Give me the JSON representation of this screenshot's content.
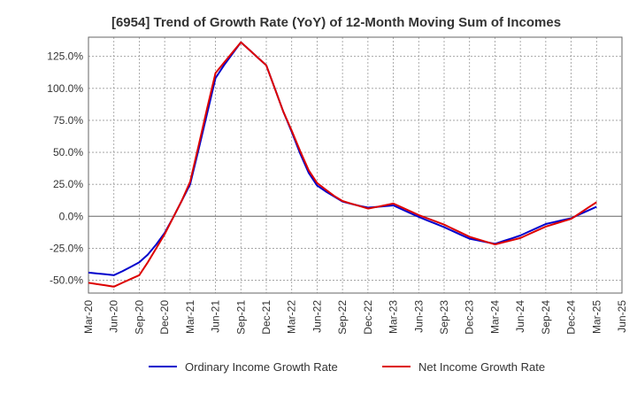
{
  "chart_data": {
    "type": "line",
    "title": "[6954]  Trend of Growth Rate (YoY) of 12-Month Moving Sum of Incomes",
    "xlabel": "",
    "ylabel": "",
    "x_ticks": [
      "Mar-20",
      "Jun-20",
      "Sep-20",
      "Dec-20",
      "Mar-21",
      "Jun-21",
      "Sep-21",
      "Dec-21",
      "Mar-22",
      "Jun-22",
      "Sep-22",
      "Dec-22",
      "Mar-23",
      "Jun-23",
      "Sep-23",
      "Dec-23",
      "Mar-24",
      "Jun-24",
      "Sep-24",
      "Dec-24",
      "Mar-25",
      "Jun-25"
    ],
    "y_ticks": [
      -50,
      -25,
      0,
      25,
      50,
      75,
      100,
      125
    ],
    "y_tick_labels": [
      "-50.0%",
      "-25.0%",
      "0.0%",
      "25.0%",
      "50.0%",
      "75.0%",
      "100.0%",
      "125.0%"
    ],
    "ylim": [
      -60,
      140
    ],
    "grid": true,
    "legend_position": "bottom",
    "colors": {
      "ordinary": "#0000cc",
      "net": "#dd0000",
      "grid": "#999999",
      "zero_line": "#666666"
    },
    "series": [
      {
        "name": "Ordinary Income Growth Rate",
        "color": "#0000cc",
        "x": [
          "Mar-20",
          "Apr-20",
          "May-20",
          "Jun-20",
          "Jul-20",
          "Aug-20",
          "Sep-20",
          "Oct-20",
          "Nov-20",
          "Dec-20",
          "Jan-21",
          "Feb-21",
          "Mar-21",
          "Apr-21",
          "May-21",
          "Jun-21",
          "Jul-21",
          "Aug-21",
          "Sep-21",
          "Oct-21",
          "Nov-21",
          "Dec-21",
          "Jan-22",
          "Feb-22",
          "Mar-22",
          "Apr-22",
          "May-22",
          "Jun-22",
          "Jul-22",
          "Aug-22",
          "Sep-22",
          "Oct-22",
          "Nov-22",
          "Dec-22",
          "Jan-23",
          "Feb-23",
          "Mar-23",
          "Apr-23",
          "May-23",
          "Jun-23",
          "Jul-23",
          "Aug-23",
          "Sep-23",
          "Oct-23",
          "Nov-23",
          "Dec-23",
          "Jan-24",
          "Feb-24",
          "Mar-24",
          "Apr-24",
          "May-24",
          "Jun-24",
          "Jul-24",
          "Aug-24",
          "Sep-24",
          "Oct-24",
          "Nov-24",
          "Dec-24",
          "Jan-25",
          "Feb-25",
          "Mar-25"
        ],
        "values": [
          -44,
          -44.7,
          -45.3,
          -46,
          -43,
          -39.5,
          -36,
          -30,
          -22,
          -13,
          -1,
          12,
          25,
          52,
          80,
          108,
          118,
          127,
          136,
          130,
          124,
          118,
          100,
          82,
          66,
          49,
          34,
          24,
          19.5,
          15.5,
          11.5,
          9.8,
          8.2,
          6.8,
          7.3,
          7.9,
          8.5,
          5.5,
          2.5,
          -0.5,
          -3.2,
          -5.8,
          -8.5,
          -11.5,
          -14.5,
          -17.5,
          -18.8,
          -20.2,
          -21.5,
          -19.3,
          -17.2,
          -15,
          -12,
          -9,
          -6,
          -4.5,
          -3,
          -1.5,
          1.5,
          4.5,
          7.5
        ]
      },
      {
        "name": "Net Income Growth Rate",
        "color": "#dd0000",
        "x": [
          "Mar-20",
          "Apr-20",
          "May-20",
          "Jun-20",
          "Jul-20",
          "Aug-20",
          "Sep-20",
          "Oct-20",
          "Nov-20",
          "Dec-20",
          "Jan-21",
          "Feb-21",
          "Mar-21",
          "Apr-21",
          "May-21",
          "Jun-21",
          "Jul-21",
          "Aug-21",
          "Sep-21",
          "Oct-21",
          "Nov-21",
          "Dec-21",
          "Jan-22",
          "Feb-22",
          "Mar-22",
          "Apr-22",
          "May-22",
          "Jun-22",
          "Jul-22",
          "Aug-22",
          "Sep-22",
          "Oct-22",
          "Nov-22",
          "Dec-22",
          "Jan-23",
          "Feb-23",
          "Mar-23",
          "Apr-23",
          "May-23",
          "Jun-23",
          "Jul-23",
          "Aug-23",
          "Sep-23",
          "Oct-23",
          "Nov-23",
          "Dec-23",
          "Jan-24",
          "Feb-24",
          "Mar-24",
          "Apr-24",
          "May-24",
          "Jun-24",
          "Jul-24",
          "Aug-24",
          "Sep-24",
          "Oct-24",
          "Nov-24",
          "Dec-24",
          "Jan-25",
          "Feb-25",
          "Mar-25"
        ],
        "values": [
          -52,
          -53,
          -54,
          -55,
          -52,
          -49,
          -46,
          -36,
          -25,
          -14,
          -1,
          12,
          27,
          55,
          84,
          112,
          120,
          128,
          136,
          130,
          124,
          118,
          100,
          82,
          67,
          51,
          36,
          26,
          21,
          16,
          12,
          10,
          8,
          6,
          7.3,
          8.6,
          10,
          7,
          4,
          1,
          -1.5,
          -4,
          -6.5,
          -9.7,
          -12.8,
          -16,
          -18,
          -20,
          -22,
          -20.3,
          -18.7,
          -17,
          -14,
          -11,
          -8,
          -6,
          -4,
          -2,
          2.3,
          6.7,
          11
        ]
      }
    ]
  }
}
